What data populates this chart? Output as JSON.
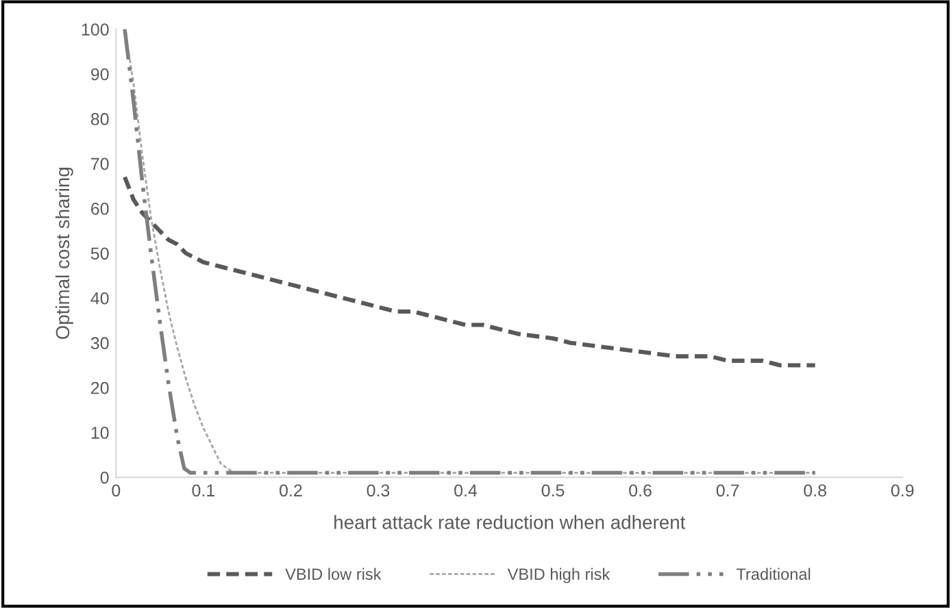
{
  "chart_data": {
    "type": "line",
    "xlabel": "heart attack rate reduction when adherent",
    "ylabel": "Optimal cost sharing",
    "xlim": [
      0,
      0.9
    ],
    "xticks": [
      0,
      0.1,
      0.2,
      0.3,
      0.4,
      0.5,
      0.6,
      0.7,
      0.8,
      0.9
    ],
    "ylim": [
      0,
      100
    ],
    "yticks": [
      0,
      10,
      20,
      30,
      40,
      50,
      60,
      70,
      80,
      90,
      100
    ],
    "grid": false,
    "legend": "bottom",
    "marker": "none",
    "series": [
      {
        "name": "VBID low risk",
        "color": "#595959",
        "line_style": "dashed",
        "x": [
          0.01,
          0.02,
          0.03,
          0.04,
          0.05,
          0.06,
          0.07,
          0.08,
          0.09,
          0.1,
          0.12,
          0.14,
          0.16,
          0.18,
          0.2,
          0.22,
          0.24,
          0.26,
          0.28,
          0.3,
          0.32,
          0.34,
          0.36,
          0.38,
          0.4,
          0.42,
          0.44,
          0.46,
          0.5,
          0.52,
          0.56,
          0.6,
          0.64,
          0.68,
          0.7,
          0.74,
          0.76,
          0.8
        ],
        "values": [
          67,
          62,
          59,
          57,
          55,
          53,
          52,
          50,
          49,
          48,
          47,
          46,
          45,
          44,
          43,
          42,
          41,
          40,
          39,
          38,
          37,
          37,
          36,
          35,
          34,
          34,
          33,
          32,
          31,
          30,
          29,
          28,
          27,
          27,
          26,
          26,
          25,
          25
        ]
      },
      {
        "name": "VBID high risk",
        "color": "#a6a6a6",
        "line_style": "dotted",
        "x": [
          0.01,
          0.02,
          0.03,
          0.04,
          0.05,
          0.06,
          0.07,
          0.08,
          0.09,
          0.1,
          0.11,
          0.12,
          0.135,
          0.8
        ],
        "values": [
          100,
          88,
          72,
          58,
          47,
          37,
          29,
          22,
          16,
          11,
          7,
          3,
          1,
          1
        ]
      },
      {
        "name": "Traditional",
        "color": "#7f7f7f",
        "line_style": "dashdot",
        "x": [
          0.01,
          0.02,
          0.03,
          0.04,
          0.05,
          0.06,
          0.07,
          0.078,
          0.085,
          0.8
        ],
        "values": [
          100,
          84,
          66,
          50,
          35,
          21,
          9,
          2,
          1,
          1
        ]
      }
    ]
  }
}
